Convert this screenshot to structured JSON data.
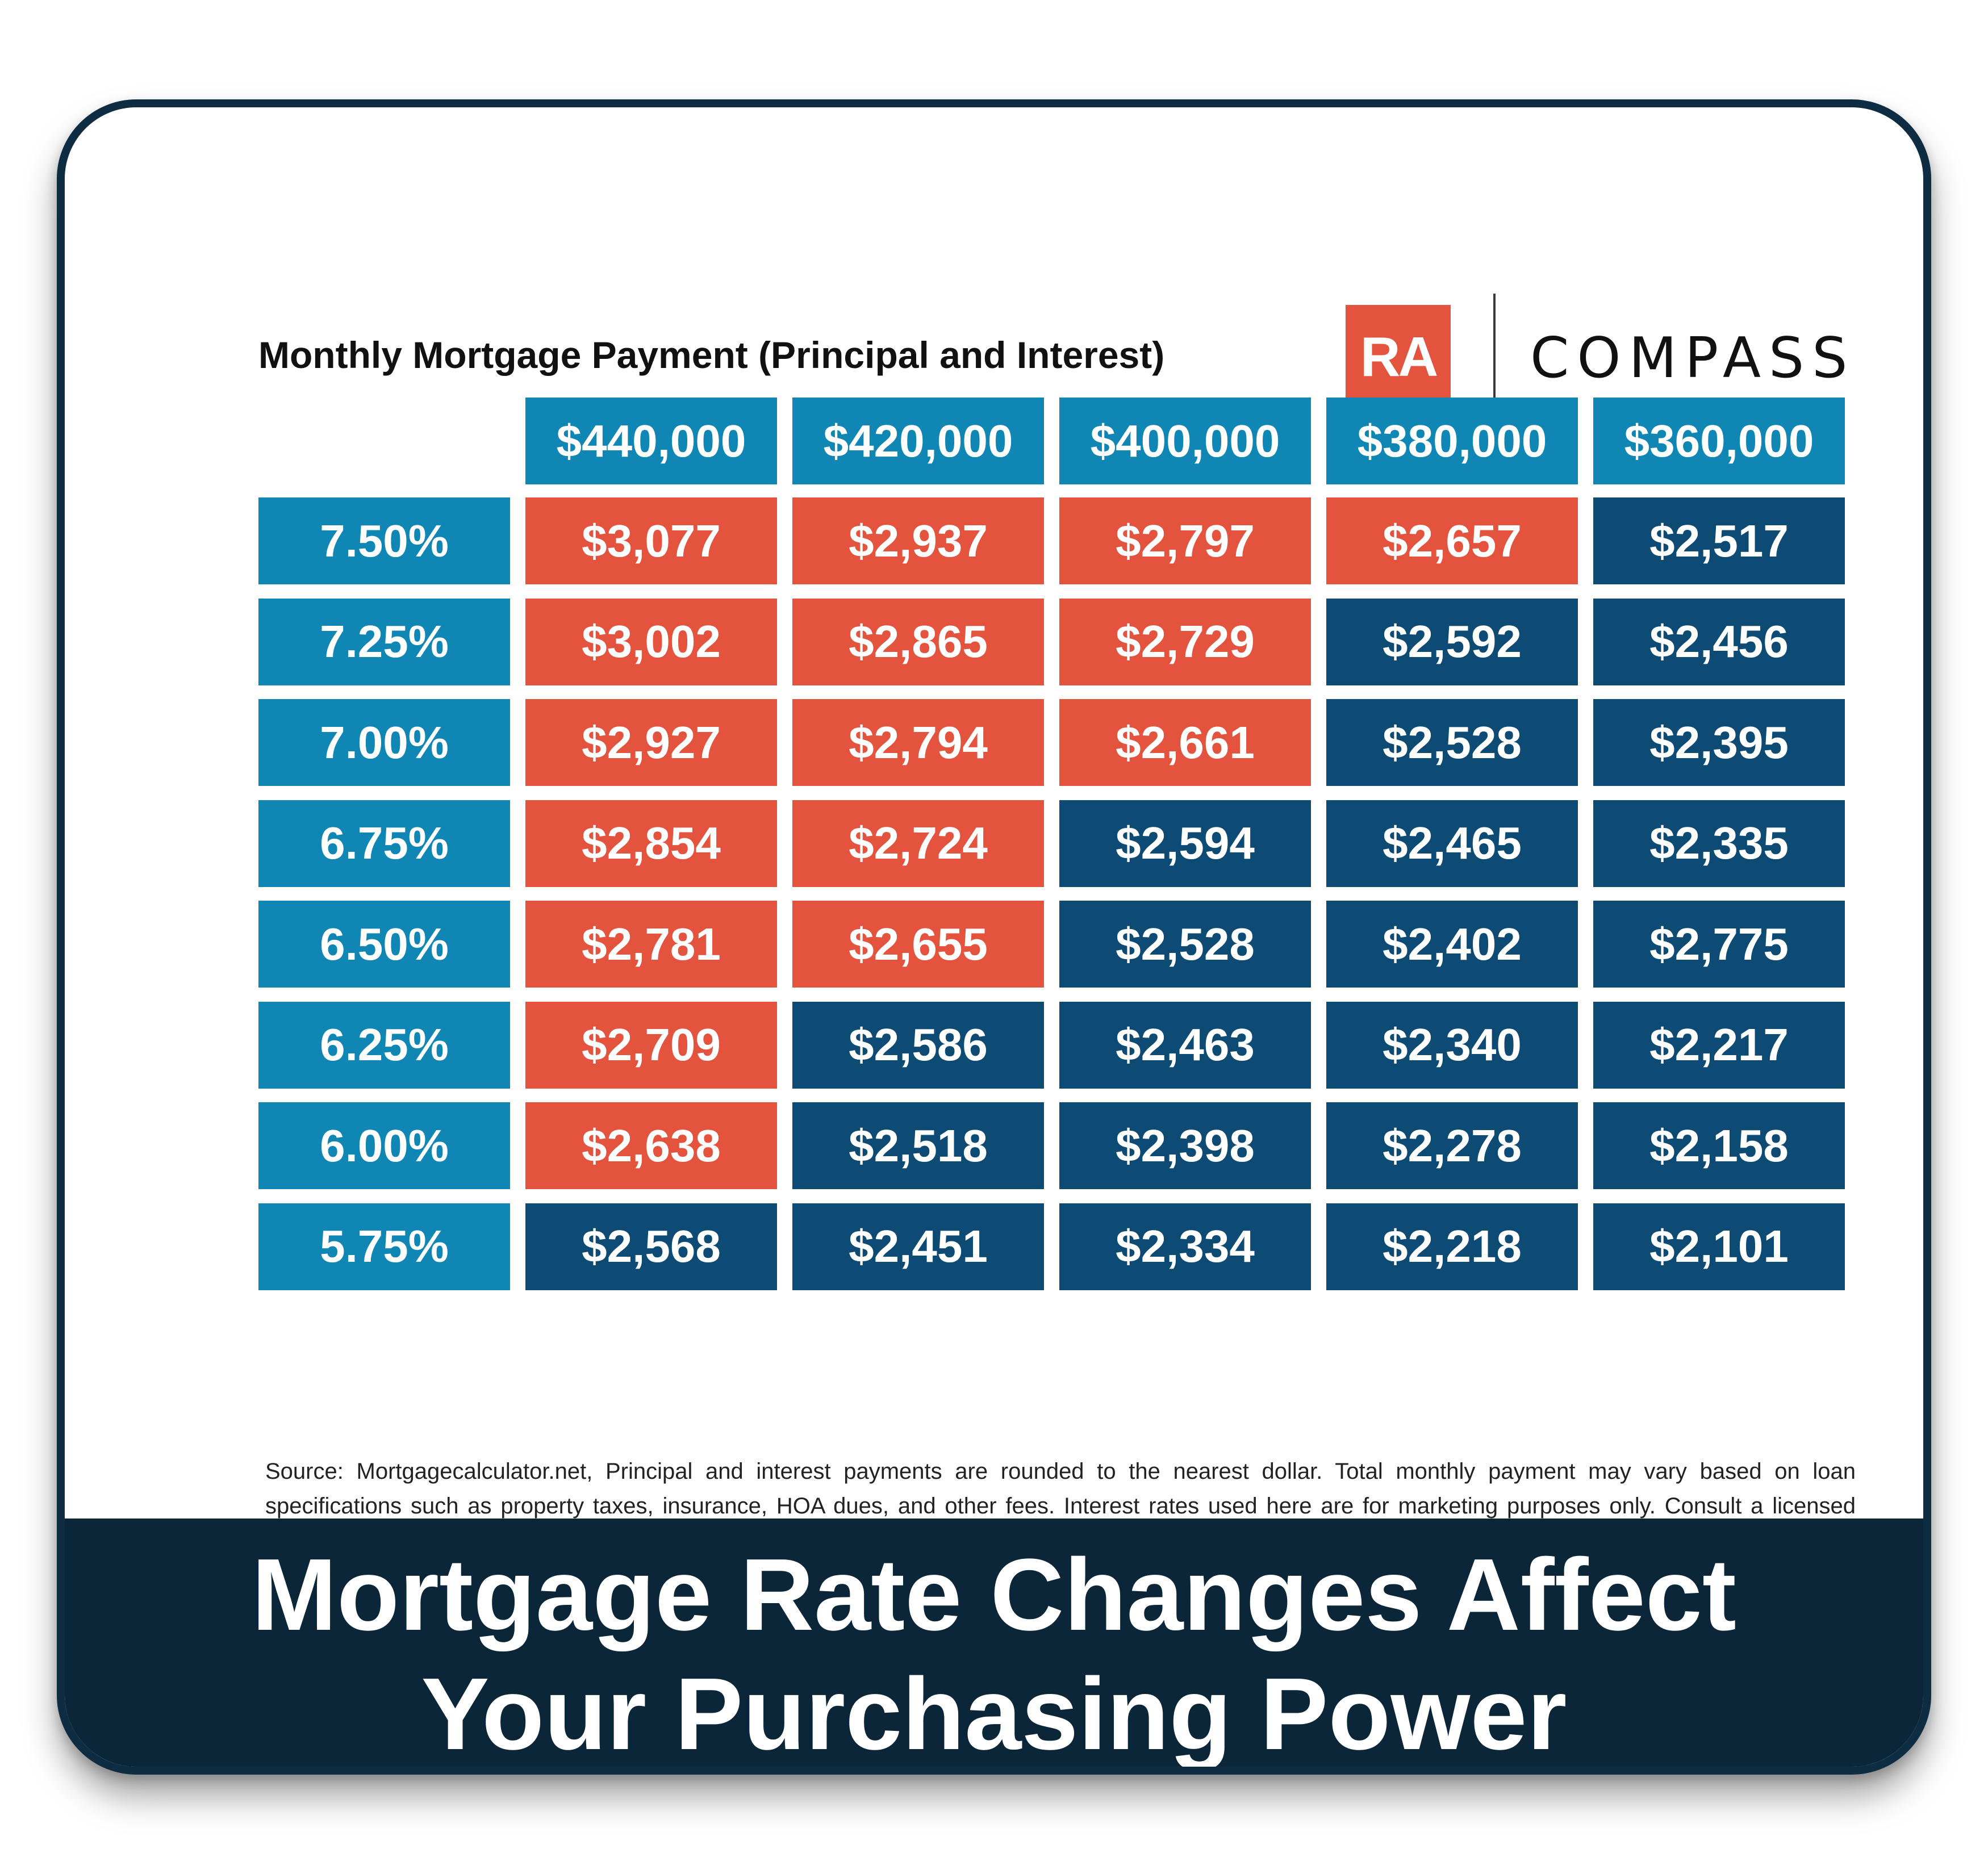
{
  "brand": {
    "ra_logo_text": "RA",
    "compass_logo_text": "COMPASS",
    "accent_red": "#e3533e",
    "accent_blue": "#0f86b4",
    "accent_navy": "#0d4a74",
    "banner_color": "#0b2638"
  },
  "chart_data": {
    "type": "table",
    "title": "Monthly Mortgage Payment (Principal and Interest)",
    "columns": [
      "$440,000",
      "$420,000",
      "$400,000",
      "$380,000",
      "$360,000"
    ],
    "rows": [
      {
        "rate": "7.50%",
        "values": [
          "$3,077",
          "$2,937",
          "$2,797",
          "$2,657",
          "$2,517"
        ],
        "highlight": [
          true,
          true,
          true,
          true,
          false
        ]
      },
      {
        "rate": "7.25%",
        "values": [
          "$3,002",
          "$2,865",
          "$2,729",
          "$2,592",
          "$2,456"
        ],
        "highlight": [
          true,
          true,
          true,
          false,
          false
        ]
      },
      {
        "rate": "7.00%",
        "values": [
          "$2,927",
          "$2,794",
          "$2,661",
          "$2,528",
          "$2,395"
        ],
        "highlight": [
          true,
          true,
          true,
          false,
          false
        ]
      },
      {
        "rate": "6.75%",
        "values": [
          "$2,854",
          "$2,724",
          "$2,594",
          "$2,465",
          "$2,335"
        ],
        "highlight": [
          true,
          true,
          false,
          false,
          false
        ]
      },
      {
        "rate": "6.50%",
        "values": [
          "$2,781",
          "$2,655",
          "$2,528",
          "$2,402",
          "$2,775"
        ],
        "highlight": [
          true,
          true,
          false,
          false,
          false
        ]
      },
      {
        "rate": "6.25%",
        "values": [
          "$2,709",
          "$2,586",
          "$2,463",
          "$2,340",
          "$2,217"
        ],
        "highlight": [
          true,
          false,
          false,
          false,
          false
        ]
      },
      {
        "rate": "6.00%",
        "values": [
          "$2,638",
          "$2,518",
          "$2,398",
          "$2,278",
          "$2,158"
        ],
        "highlight": [
          true,
          false,
          false,
          false,
          false
        ]
      },
      {
        "rate": "5.75%",
        "values": [
          "$2,568",
          "$2,451",
          "$2,334",
          "$2,218",
          "$2,101"
        ],
        "highlight": [
          false,
          false,
          false,
          false,
          false
        ]
      }
    ]
  },
  "source_note": "Source: Mortgagecalculator.net, Principal and interest payments are rounded to the nearest dollar. Total monthly payment may vary based on loan specifications such as property taxes, insurance, HOA dues, and other fees. Interest rates used here are for marketing purposes only. Consult a licensed Mortgage Advisor for current rates.",
  "banner": {
    "line1": "Mortgage Rate Changes Affect",
    "line2": "Your Purchasing Power"
  }
}
